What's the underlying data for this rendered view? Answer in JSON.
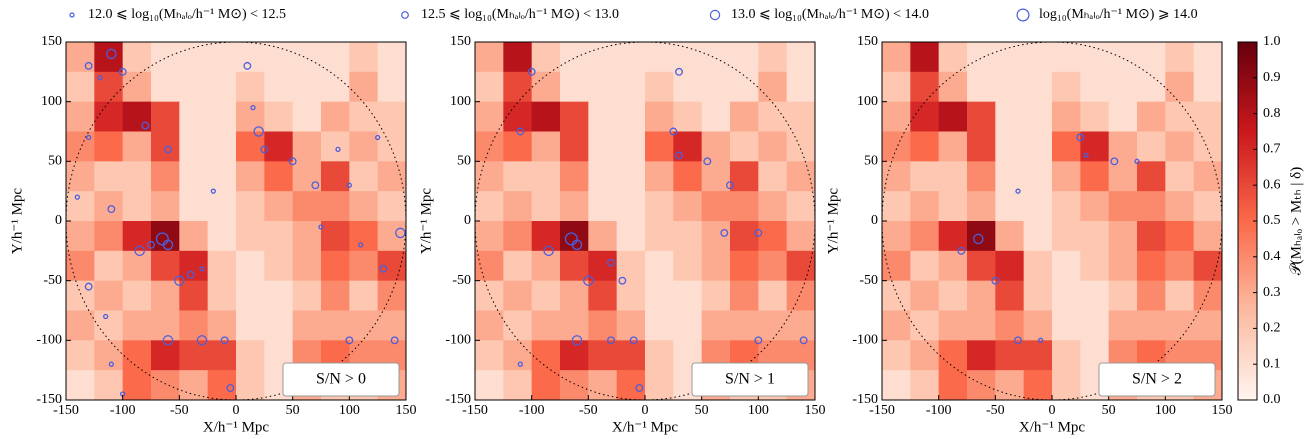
{
  "chart_data": {
    "type": "heatmap",
    "legend": [
      "12.0 ⩽ log₁₀(Mₕₐₗₒ/h⁻¹ M⊙) < 12.5",
      "12.5 ⩽ log₁₀(Mₕₐₗₒ/h⁻¹ M⊙) < 13.0",
      "13.0 ⩽ log₁₀(Mₕₐₗₒ/h⁻¹ M⊙) < 14.0",
      "log₁₀(Mₕₐₗₒ/h⁻¹ M⊙) ⩾ 14.0"
    ],
    "halo_color": "#4a5fe0",
    "xlabel": "X/h⁻¹ Mpc",
    "ylabel": "Y/h⁻¹ Mpc",
    "xlim": [
      -150,
      150
    ],
    "ylim": [
      -150,
      150
    ],
    "xticks": [
      -150,
      -100,
      -50,
      0,
      50,
      100,
      150
    ],
    "yticks": [
      -150,
      -100,
      -50,
      0,
      50,
      100,
      150
    ],
    "colormap": [
      "#fff5f0",
      "#fcbba1",
      "#fb6a4a",
      "#cb181d",
      "#67000d"
    ],
    "colorbar": {
      "label": "𝒫(Mₕₐₗₒ > Mₜₕ | δ)",
      "lim": [
        0,
        1
      ],
      "ticks": [
        {
          "value": 0,
          "label": "0.0"
        },
        0.1,
        0.2,
        0.3,
        0.4,
        0.5,
        0.6,
        0.7,
        0.8,
        0.9,
        {
          "value": 1,
          "label": "1.0"
        }
      ]
    },
    "heatmap": {
      "values": [
        [
          0.3,
          0.8,
          0.2,
          0.1,
          0.1,
          0.1,
          0.1,
          0.1,
          0.1,
          0.1,
          0.2,
          0.1
        ],
        [
          0.2,
          0.6,
          0.3,
          0.1,
          0.1,
          0.1,
          0.2,
          0.1,
          0.1,
          0.1,
          0.3,
          0.1
        ],
        [
          0.3,
          0.7,
          0.8,
          0.6,
          0.1,
          0.1,
          0.3,
          0.2,
          0.1,
          0.3,
          0.2,
          0.2
        ],
        [
          0.4,
          0.5,
          0.3,
          0.6,
          0.1,
          0.1,
          0.5,
          0.7,
          0.3,
          0.2,
          0.3,
          0.2
        ],
        [
          0.3,
          0.2,
          0.2,
          0.4,
          0.1,
          0.1,
          0.3,
          0.5,
          0.3,
          0.6,
          0.2,
          0.3
        ],
        [
          0.2,
          0.3,
          0.2,
          0.3,
          0.1,
          0.1,
          0.2,
          0.3,
          0.4,
          0.4,
          0.3,
          0.2
        ],
        [
          0.3,
          0.4,
          0.7,
          0.9,
          0.3,
          0.1,
          0.2,
          0.2,
          0.3,
          0.6,
          0.5,
          0.3
        ],
        [
          0.4,
          0.2,
          0.3,
          0.6,
          0.7,
          0.2,
          0.1,
          0.2,
          0.3,
          0.5,
          0.4,
          0.6
        ],
        [
          0.2,
          0.3,
          0.2,
          0.3,
          0.6,
          0.2,
          0.1,
          0.1,
          0.2,
          0.4,
          0.2,
          0.4
        ],
        [
          0.3,
          0.2,
          0.3,
          0.3,
          0.4,
          0.3,
          0.1,
          0.1,
          0.3,
          0.3,
          0.3,
          0.3
        ],
        [
          0.2,
          0.3,
          0.5,
          0.7,
          0.6,
          0.6,
          0.2,
          0.1,
          0.4,
          0.5,
          0.4,
          0.4
        ],
        [
          0.1,
          0.2,
          0.5,
          0.4,
          0.3,
          0.5,
          0.2,
          0.1,
          0.3,
          0.2,
          0.2,
          0.3
        ]
      ]
    },
    "panels": [
      {
        "label": "S/N > 0",
        "halos": {
          "x": [
            -110,
            -100,
            -80,
            -60,
            -130,
            -140,
            -110,
            -85,
            -75,
            -65,
            -60,
            -40,
            -50,
            -30,
            -130,
            -115,
            -60,
            -30,
            -10,
            -5,
            -110,
            -100,
            10,
            20,
            25,
            50,
            70,
            75,
            100,
            110,
            125,
            130,
            140,
            145,
            -20,
            100,
            -130,
            -120,
            15,
            90
          ],
          "y": [
            140,
            125,
            80,
            60,
            70,
            20,
            10,
            -25,
            -20,
            -15,
            -20,
            -45,
            -50,
            -40,
            -55,
            -80,
            -100,
            -100,
            -100,
            -140,
            -120,
            -145,
            130,
            75,
            60,
            50,
            30,
            -5,
            30,
            -20,
            70,
            -40,
            -100,
            -10,
            25,
            -100,
            130,
            120,
            95,
            60
          ],
          "mass_bin": [
            2,
            1,
            1,
            1,
            0,
            0,
            1,
            2,
            1,
            3,
            2,
            1,
            2,
            0,
            1,
            0,
            2,
            2,
            1,
            1,
            0,
            0,
            1,
            2,
            1,
            1,
            1,
            0,
            0,
            0,
            0,
            1,
            1,
            2,
            0,
            1,
            1,
            0,
            0,
            0
          ]
        }
      },
      {
        "label": "S/N > 1",
        "halos": {
          "x": [
            -100,
            -110,
            -85,
            -65,
            -60,
            -50,
            -30,
            -60,
            -30,
            -10,
            -110,
            30,
            25,
            30,
            55,
            75,
            100,
            100,
            140,
            -5,
            70,
            -20
          ],
          "y": [
            125,
            75,
            -25,
            -15,
            -20,
            -50,
            -35,
            -100,
            -100,
            -100,
            -120,
            125,
            75,
            55,
            50,
            30,
            -10,
            -100,
            -100,
            -140,
            -10,
            -50
          ],
          "mass_bin": [
            1,
            1,
            2,
            3,
            2,
            2,
            1,
            2,
            1,
            1,
            0,
            1,
            1,
            1,
            1,
            1,
            1,
            1,
            1,
            1,
            1,
            1
          ]
        }
      },
      {
        "label": "S/N > 2",
        "halos": {
          "x": [
            -80,
            -65,
            -50,
            -30,
            25,
            30,
            55,
            75,
            -30,
            -10
          ],
          "y": [
            -25,
            -15,
            -50,
            -100,
            70,
            55,
            50,
            50,
            25,
            -100
          ],
          "mass_bin": [
            1,
            2,
            1,
            1,
            1,
            0,
            1,
            0,
            0,
            0
          ]
        }
      }
    ]
  }
}
